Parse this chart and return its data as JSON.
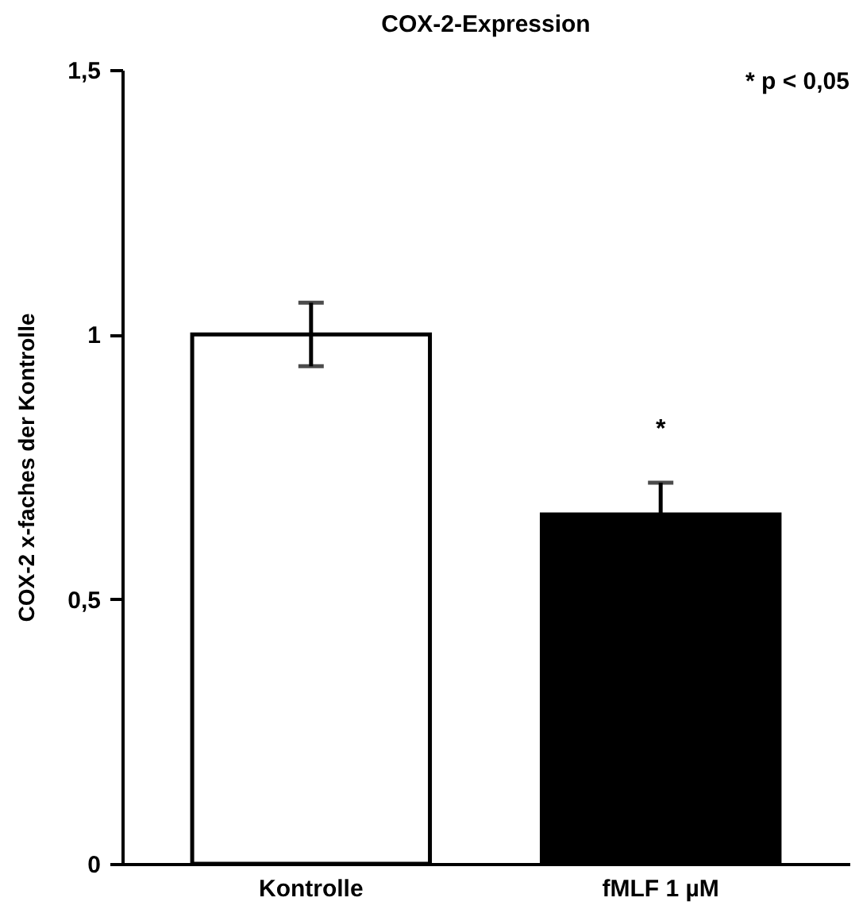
{
  "chart_data": {
    "type": "bar",
    "title": "COX-2-Expression",
    "ylabel": "COX-2 x-faches der Kontrolle",
    "categories": [
      "Kontrolle",
      "fMLF 1 µM"
    ],
    "values": [
      1.0,
      0.66
    ],
    "colors": [
      "#ffffff",
      "#000000"
    ],
    "errors": [
      0.06,
      0.06
    ],
    "ylim": [
      0,
      1.5
    ],
    "yticks": [
      {
        "value": 0,
        "label": "0"
      },
      {
        "value": 0.5,
        "label": "0,5"
      },
      {
        "value": 1,
        "label": "1"
      },
      {
        "value": 1.5,
        "label": "1,5"
      }
    ],
    "grid": false,
    "annotations": [
      "* p < 0,05",
      "*"
    ]
  }
}
